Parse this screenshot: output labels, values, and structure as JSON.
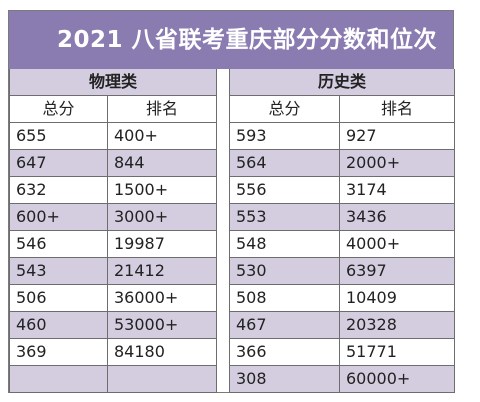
{
  "title": "2021 八省联考重庆部分分数和位次",
  "physics": {
    "label": "物理类",
    "col_score": "总分",
    "col_rank": "排名",
    "rows": [
      {
        "score": "655",
        "rank": "400+"
      },
      {
        "score": "647",
        "rank": "844"
      },
      {
        "score": "632",
        "rank": "1500+"
      },
      {
        "score": "600+",
        "rank": "3000+"
      },
      {
        "score": "546",
        "rank": "19987"
      },
      {
        "score": "543",
        "rank": "21412"
      },
      {
        "score": "506",
        "rank": "36000+"
      },
      {
        "score": "460",
        "rank": "53000+"
      },
      {
        "score": "369",
        "rank": "84180"
      },
      {
        "score": "",
        "rank": ""
      }
    ]
  },
  "history": {
    "label": "历史类",
    "col_score": "总分",
    "col_rank": "排名",
    "rows": [
      {
        "score": "593",
        "rank": "927"
      },
      {
        "score": "564",
        "rank": "2000+"
      },
      {
        "score": "556",
        "rank": "3174"
      },
      {
        "score": "553",
        "rank": "3436"
      },
      {
        "score": "548",
        "rank": "4000+"
      },
      {
        "score": "530",
        "rank": "6397"
      },
      {
        "score": "508",
        "rank": "10409"
      },
      {
        "score": "467",
        "rank": "20328"
      },
      {
        "score": "366",
        "rank": "51771"
      },
      {
        "score": "308",
        "rank": "60000+"
      }
    ]
  }
}
